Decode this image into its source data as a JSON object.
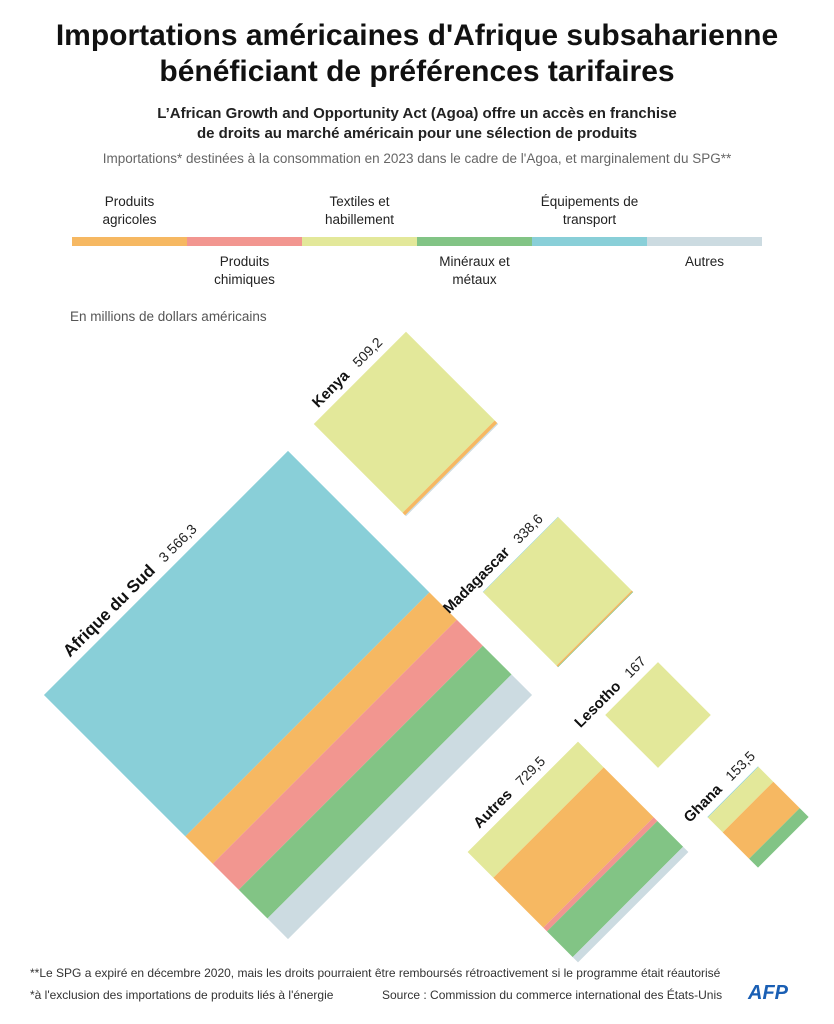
{
  "title": "Importations américaines d'Afrique subsaharienne bénéficiant de préférences tarifaires",
  "subtitle": "L’African Growth and Opportunity Act (Agoa) offre un accès en franchise de droits au marché américain pour une sélection de produits",
  "description": "Importations* destinées à la consommation en 2023 dans le cadre de l'Agoa, et marginalement du SPG**",
  "chart_data": {
    "type": "rotated-treemap",
    "unit_label": "En millions de dollars américains",
    "categories": [
      "Afrique du Sud",
      "Kenya",
      "Madagascar",
      "Lesotho",
      "Autres",
      "Ghana"
    ],
    "totals": [
      3566.3,
      509.2,
      338.6,
      167,
      729.5,
      153.5
    ],
    "total_labels": [
      "3 566,3",
      "509,2",
      "338,6",
      "167",
      "729,5",
      "153,5"
    ],
    "series": [
      {
        "name": "Produits agricoles",
        "color": "#f6b862",
        "values": [
          400,
          14,
          5,
          null,
          330,
          80
        ]
      },
      {
        "name": "Produits chimiques",
        "color": "#f29690",
        "values": [
          380,
          null,
          null,
          null,
          24.5,
          null
        ]
      },
      {
        "name": "Textiles et habillement",
        "color": "#e3e89a",
        "values": [
          null,
          490.2,
          330,
          167,
          170,
          45
        ]
      },
      {
        "name": "Minéraux et métaux",
        "color": "#82c485",
        "values": [
          420,
          null,
          2,
          null,
          170,
          27
        ]
      },
      {
        "name": "Équipements de transport",
        "color": "#89cfd8",
        "values": [
          2066.3,
          null,
          1.6,
          null,
          null,
          1.5
        ]
      },
      {
        "name": "Autres",
        "color": "#ccdbe1",
        "values": [
          300,
          5,
          null,
          null,
          35,
          null
        ]
      }
    ]
  },
  "footnotes": [
    "**Le SPG a expiré en décembre 2020, mais les droits pourraient être remboursés rétroactivement si le programme était réautorisé",
    "*à l'exclusion des importations de produits liés à l'énergie"
  ],
  "source": "Source : Commission du commerce international des États-Unis",
  "logo": "AFP"
}
